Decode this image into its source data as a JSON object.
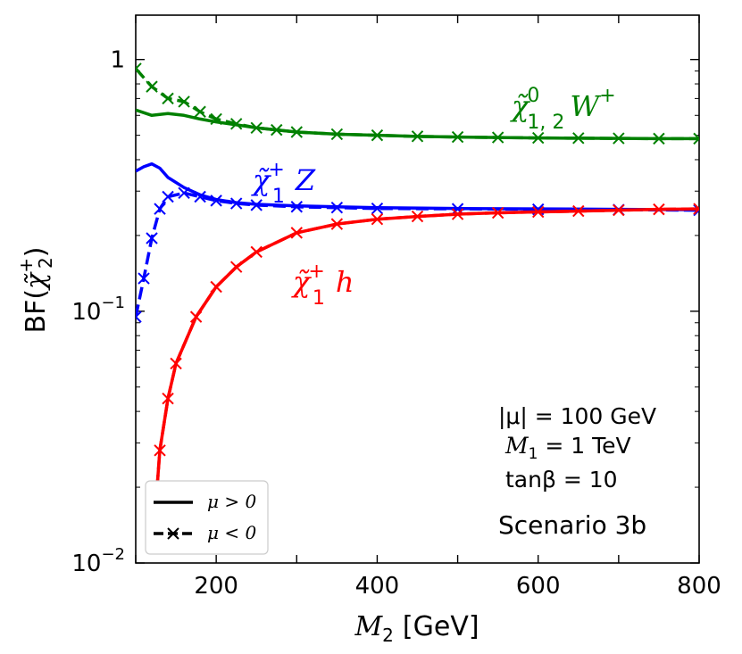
{
  "chart_data": {
    "type": "line",
    "xlabel_main": "M",
    "xlabel_sub": "2",
    "xlabel_unit": "[GeV]",
    "ylabel_main": "BF(",
    "ylabel_sym": "χ̃",
    "ylabel_sup": "+",
    "ylabel_sub": "2",
    "ylabel_close": ")",
    "xlim": [
      100,
      800
    ],
    "ylim": [
      0.01,
      1.5
    ],
    "yscale": "log",
    "x_ticks": [
      {
        "value": 200,
        "label": "200"
      },
      {
        "value": 400,
        "label": "400"
      },
      {
        "value": 600,
        "label": "600"
      },
      {
        "value": 800,
        "label": "800"
      }
    ],
    "y_ticks": [
      {
        "value": 1,
        "label": "1",
        "base": "1",
        "exp": ""
      },
      {
        "value": 0.1,
        "label": "10^-1",
        "base": "10",
        "exp": "−1"
      },
      {
        "value": 0.01,
        "label": "10^-2",
        "base": "10",
        "exp": "−2"
      }
    ],
    "annotations": {
      "mu_text": "|μ| = 100 GeV",
      "m1_main": "M",
      "m1_sub": "1",
      "m1_rest": " = 1 TeV",
      "tanb_text": "tanβ = 10",
      "scenario": "Scenario 3b"
    },
    "curve_labels": [
      {
        "sym": "χ̃",
        "sup": "0",
        "sub": "1, 2",
        "rest": "W",
        "rest_sup": "+",
        "color": "#008000"
      },
      {
        "sym": "χ̃",
        "sup": "+",
        "sub": "1",
        "rest": "Z",
        "rest_sup": "",
        "color": "#0000ff"
      },
      {
        "sym": "χ̃",
        "sup": "+",
        "sub": "1",
        "rest": "h",
        "rest_sup": "",
        "color": "#ff0000"
      }
    ],
    "legend": {
      "position": "lower-left",
      "entries": [
        {
          "label": "μ > 0",
          "style": "solid"
        },
        {
          "label": "μ < 0",
          "style": "dashed-x"
        }
      ]
    },
    "series": [
      {
        "channel": "W",
        "sign": "mu>0",
        "color": "#008000",
        "style": "solid",
        "x": [
          100,
          120,
          140,
          160,
          180,
          200,
          225,
          250,
          275,
          300,
          350,
          400,
          450,
          500,
          550,
          600,
          650,
          700,
          750,
          800
        ],
        "y": [
          0.63,
          0.6,
          0.61,
          0.6,
          0.58,
          0.565,
          0.55,
          0.535,
          0.525,
          0.515,
          0.505,
          0.5,
          0.495,
          0.492,
          0.49,
          0.488,
          0.487,
          0.486,
          0.485,
          0.485
        ]
      },
      {
        "channel": "W",
        "sign": "mu<0",
        "color": "#008000",
        "style": "dashed-x",
        "x": [
          100,
          120,
          140,
          160,
          180,
          200,
          225,
          250,
          275,
          300,
          350,
          400,
          450,
          500,
          550,
          600,
          650,
          700,
          750,
          800
        ],
        "y": [
          0.92,
          0.78,
          0.7,
          0.68,
          0.62,
          0.58,
          0.555,
          0.535,
          0.525,
          0.515,
          0.505,
          0.5,
          0.495,
          0.492,
          0.49,
          0.488,
          0.487,
          0.486,
          0.485,
          0.485
        ]
      },
      {
        "channel": "Z",
        "sign": "mu>0",
        "color": "#0000ff",
        "style": "solid",
        "x": [
          100,
          110,
          120,
          130,
          140,
          160,
          180,
          200,
          225,
          250,
          300,
          350,
          400,
          500,
          600,
          700,
          800
        ],
        "y": [
          0.36,
          0.375,
          0.385,
          0.37,
          0.34,
          0.31,
          0.29,
          0.278,
          0.27,
          0.266,
          0.262,
          0.26,
          0.258,
          0.256,
          0.255,
          0.254,
          0.253
        ]
      },
      {
        "channel": "Z",
        "sign": "mu<0",
        "color": "#0000ff",
        "style": "dashed-x",
        "x": [
          100,
          110,
          120,
          130,
          140,
          160,
          180,
          200,
          225,
          250,
          300,
          350,
          400,
          500,
          600,
          700,
          800
        ],
        "y": [
          0.095,
          0.135,
          0.195,
          0.255,
          0.285,
          0.295,
          0.285,
          0.275,
          0.268,
          0.264,
          0.26,
          0.258,
          0.256,
          0.255,
          0.254,
          0.253,
          0.252
        ]
      },
      {
        "channel": "h",
        "sign": "mu>0",
        "color": "#ff0000",
        "style": "solid",
        "x": [
          125,
          130,
          140,
          150,
          175,
          200,
          225,
          250,
          300,
          350,
          400,
          450,
          500,
          550,
          600,
          650,
          700,
          750,
          800
        ],
        "y": [
          0.017,
          0.028,
          0.045,
          0.062,
          0.095,
          0.125,
          0.15,
          0.172,
          0.205,
          0.222,
          0.232,
          0.238,
          0.243,
          0.246,
          0.248,
          0.25,
          0.252,
          0.254,
          0.255
        ]
      },
      {
        "channel": "h",
        "sign": "mu<0",
        "color": "#ff0000",
        "style": "dashed-x",
        "x": [
          125,
          130,
          140,
          150,
          175,
          200,
          225,
          250,
          300,
          350,
          400,
          450,
          500,
          550,
          600,
          650,
          700,
          750,
          800
        ],
        "y": [
          0.017,
          0.028,
          0.045,
          0.062,
          0.095,
          0.125,
          0.15,
          0.172,
          0.205,
          0.222,
          0.232,
          0.238,
          0.243,
          0.246,
          0.248,
          0.25,
          0.252,
          0.254,
          0.255
        ]
      }
    ]
  }
}
